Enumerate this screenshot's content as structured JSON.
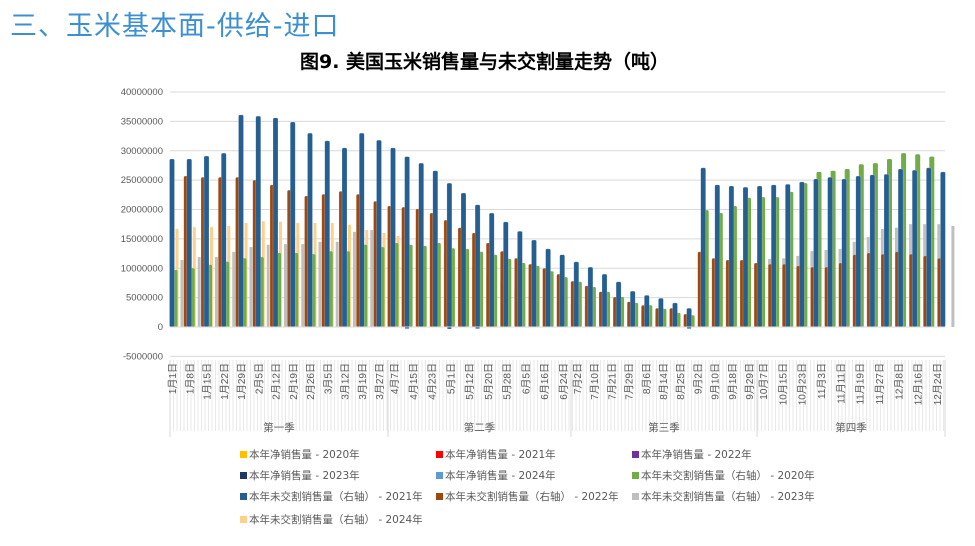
{
  "header": {
    "section_title": "三、玉米基本面-供给-进口",
    "chart_title": "图9. 美国玉米销售量与未交割量走势（吨）"
  },
  "chart_data": {
    "type": "bar",
    "title": "图9. 美国玉米销售量与未交割量走势（吨）",
    "ylim": [
      -5000000,
      40000000
    ],
    "yticks": [
      "40000000",
      "35000000",
      "30000000",
      "25000000",
      "20000000",
      "15000000",
      "10000000",
      "5000000",
      "0",
      "-5000000"
    ],
    "grid": true,
    "legend_position": "bottom",
    "quarters": [
      {
        "name": "第一季",
        "labels": [
          "1月1日",
          "1月8日",
          "1月15日",
          "1月22日",
          "1月29日",
          "2月5日",
          "2月12日",
          "2月19日",
          "2月26日",
          "3月5日",
          "3月12日",
          "3月19日",
          "3月27日"
        ]
      },
      {
        "name": "第二季",
        "labels": [
          "4月7日",
          "4月15日",
          "4月23日",
          "5月1日",
          "5月12日",
          "5月20日",
          "5月28日",
          "6月5日",
          "6月16日",
          "6月24日"
        ]
      },
      {
        "name": "第三季",
        "labels": [
          "7月2日",
          "7月10日",
          "7月21日",
          "7月29日",
          "8月6日",
          "8月14日",
          "8月25日",
          "9月2日",
          "9月10日",
          "9月18日",
          "9月29日"
        ]
      },
      {
        "name": "第四季",
        "labels": [
          "10月7日",
          "10月15日",
          "10月23日",
          "11月3日",
          "11月11日",
          "11月19日",
          "11月27日",
          "12月8日",
          "12月16日",
          "12月24日"
        ]
      }
    ],
    "series": [
      {
        "name": "本年净销售量 - 2020年",
        "color": "#ffc000",
        "values": []
      },
      {
        "name": "本年净销售量 - 2021年",
        "color": "#ff0000",
        "values": []
      },
      {
        "name": "本年净销售量 - 2022年",
        "color": "#7030a0",
        "values": []
      },
      {
        "name": "本年净销售量 - 2023年",
        "color": "#1f3864",
        "values": [
          null,
          null,
          null,
          null,
          null,
          null,
          null,
          null,
          null,
          null,
          null,
          null,
          null,
          null,
          -200000,
          null,
          null,
          -300000,
          null,
          -200000,
          null,
          null,
          null,
          null,
          null,
          null,
          null,
          null,
          null,
          null,
          null,
          null,
          null,
          null,
          -100000,
          null,
          null,
          null,
          null,
          null,
          null,
          null,
          null,
          null,
          null,
          null,
          null,
          null,
          null,
          null,
          null,
          null,
          null
        ]
      },
      {
        "name": "本年净销售量 - 2024年",
        "color": "#5b9bd5",
        "values": []
      },
      {
        "name": "本年未交割销售量（右轴） - 2020年",
        "color": "#70ad47",
        "values": [
          9700000,
          10000000,
          10600000,
          11100000,
          11700000,
          11900000,
          12600000,
          12600000,
          12400000,
          12900000,
          12900000,
          14000000,
          13600000,
          14300000,
          14000000,
          13800000,
          14300000,
          13400000,
          13300000,
          12800000,
          12300000,
          11600000,
          10900000,
          10400000,
          9500000,
          8500000,
          7700000,
          6800000,
          6000000,
          5100000,
          4100000,
          3700000,
          3100000,
          2400000,
          2000000,
          19900000,
          19400000,
          20600000,
          22000000,
          22100000,
          22100000,
          23000000,
          24500000,
          26400000,
          26600000,
          26900000,
          27700000,
          27900000,
          28600000,
          29600000,
          29400000,
          29000000,
          null
        ]
      },
      {
        "name": "本年未交割销售量（右轴） - 2021年",
        "color": "#255e91",
        "values": [
          28600000,
          28600000,
          29100000,
          29600000,
          36100000,
          35900000,
          35600000,
          34900000,
          33000000,
          31700000,
          30500000,
          33000000,
          31800000,
          30500000,
          29000000,
          27900000,
          26600000,
          24500000,
          22800000,
          20800000,
          19400000,
          17900000,
          16300000,
          14800000,
          13300000,
          12300000,
          11100000,
          10200000,
          9000000,
          7700000,
          6100000,
          5400000,
          4900000,
          4100000,
          3200000,
          27100000,
          24200000,
          24000000,
          23800000,
          24000000,
          24200000,
          24300000,
          24700000,
          25200000,
          25500000,
          25200000,
          25700000,
          25900000,
          26000000,
          26900000,
          26700000,
          27100000,
          26400000
        ]
      },
      {
        "name": "本年未交割销售量（右轴） - 2022年",
        "color": "#9e480e",
        "values": [
          null,
          25700000,
          25500000,
          25500000,
          25500000,
          25000000,
          24200000,
          23300000,
          22300000,
          22600000,
          23100000,
          22600000,
          21400000,
          20600000,
          20400000,
          20100000,
          19400000,
          18200000,
          16900000,
          16000000,
          14300000,
          12900000,
          11700000,
          10700000,
          10000000,
          9000000,
          7800000,
          7000000,
          6000000,
          5100000,
          4300000,
          3700000,
          3200000,
          3200000,
          2200000,
          12800000,
          11700000,
          11400000,
          11400000,
          10900000,
          10700000,
          10700000,
          10400000,
          10200000,
          10200000,
          10900000,
          12300000,
          12600000,
          12400000,
          12800000,
          12400000,
          12100000,
          11700000
        ]
      },
      {
        "name": "本年未交割销售量（右轴） - 2023年",
        "color": "#bfbfbf",
        "values": [
          11400000,
          11900000,
          11900000,
          12800000,
          13600000,
          14000000,
          14100000,
          14100000,
          14500000,
          14500000,
          16200000,
          16500000,
          16700000,
          16300000,
          15300000,
          14600000,
          12600000,
          11700000,
          10200000,
          8700000,
          7500000,
          6500000,
          5400000,
          4900000,
          4400000,
          3900000,
          3700000,
          3100000,
          2900000,
          2600000,
          2400000,
          2000000,
          1500000,
          1200000,
          1000000,
          1000000,
          10200000,
          10200000,
          10400000,
          11600000,
          11700000,
          12100000,
          12900000,
          13100000,
          13300000,
          14500000,
          15300000,
          16700000,
          16900000,
          17500000,
          17500000,
          17500000,
          17200000
        ]
      },
      {
        "name": "本年未交割销售量（右轴） - 2024年",
        "color": "#ffd08a",
        "values": [
          16700000,
          17000000,
          17000000,
          17200000,
          17700000,
          18000000,
          17900000,
          17700000,
          17700000,
          17700000,
          17400000,
          16500000,
          16000000,
          15500000,
          null,
          null,
          null,
          null,
          null,
          null,
          null,
          null,
          null,
          null,
          null,
          null,
          null,
          null,
          null,
          null,
          null,
          null,
          null,
          null,
          null,
          null,
          null,
          null,
          null,
          null,
          null,
          null,
          null,
          null,
          null,
          null,
          null,
          null,
          null,
          null,
          null,
          null,
          null
        ]
      }
    ]
  }
}
